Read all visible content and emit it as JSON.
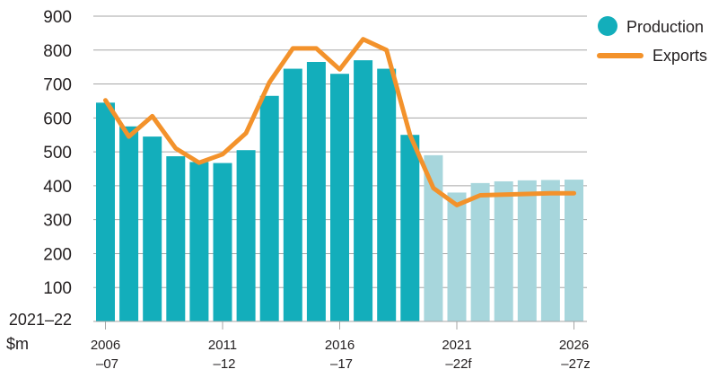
{
  "chart_data": {
    "type": "bar",
    "title": "",
    "xlabel": "",
    "ylabel": "2021–22 $m",
    "ylabel_lines": [
      "2021–22",
      "$m"
    ],
    "ylim": [
      0,
      900
    ],
    "yticks": [
      100,
      200,
      300,
      400,
      500,
      600,
      700,
      800,
      900
    ],
    "grid": true,
    "legend_placement": "top-right",
    "x_tick_labels": [
      {
        "index": 0,
        "line1": "2006",
        "line2": "–07"
      },
      {
        "index": 5,
        "line1": "2011",
        "line2": "–12"
      },
      {
        "index": 10,
        "line1": "2016",
        "line2": "–17"
      },
      {
        "index": 15,
        "line1": "2021",
        "line2": "–22f"
      },
      {
        "index": 20,
        "line1": "2026",
        "line2": "–27z"
      }
    ],
    "categories": [
      "2006–07",
      "2007–08",
      "2008–09",
      "2009–10",
      "2010–11",
      "2011–12",
      "2012–13",
      "2013–14",
      "2014–15",
      "2015–16",
      "2016–17",
      "2017–18",
      "2018–19",
      "2019–20",
      "2020–21",
      "2021–22",
      "2022–23",
      "2023–24",
      "2024–25",
      "2025–26",
      "2026–27"
    ],
    "series": [
      {
        "name": "Production",
        "kind": "bar",
        "color": "#13aebb",
        "forecast_color": "#a7d6dc",
        "forecast_from_index": 14,
        "values": [
          645,
          575,
          545,
          487,
          470,
          467,
          505,
          665,
          745,
          765,
          730,
          770,
          745,
          550,
          490,
          380,
          408,
          413,
          416,
          417,
          418
        ]
      },
      {
        "name": "Exports",
        "kind": "line",
        "color": "#f3922b",
        "values": [
          652,
          545,
          605,
          510,
          468,
          493,
          555,
          705,
          805,
          805,
          743,
          832,
          800,
          550,
          393,
          343,
          372,
          374,
          376,
          378,
          378
        ]
      }
    ]
  }
}
